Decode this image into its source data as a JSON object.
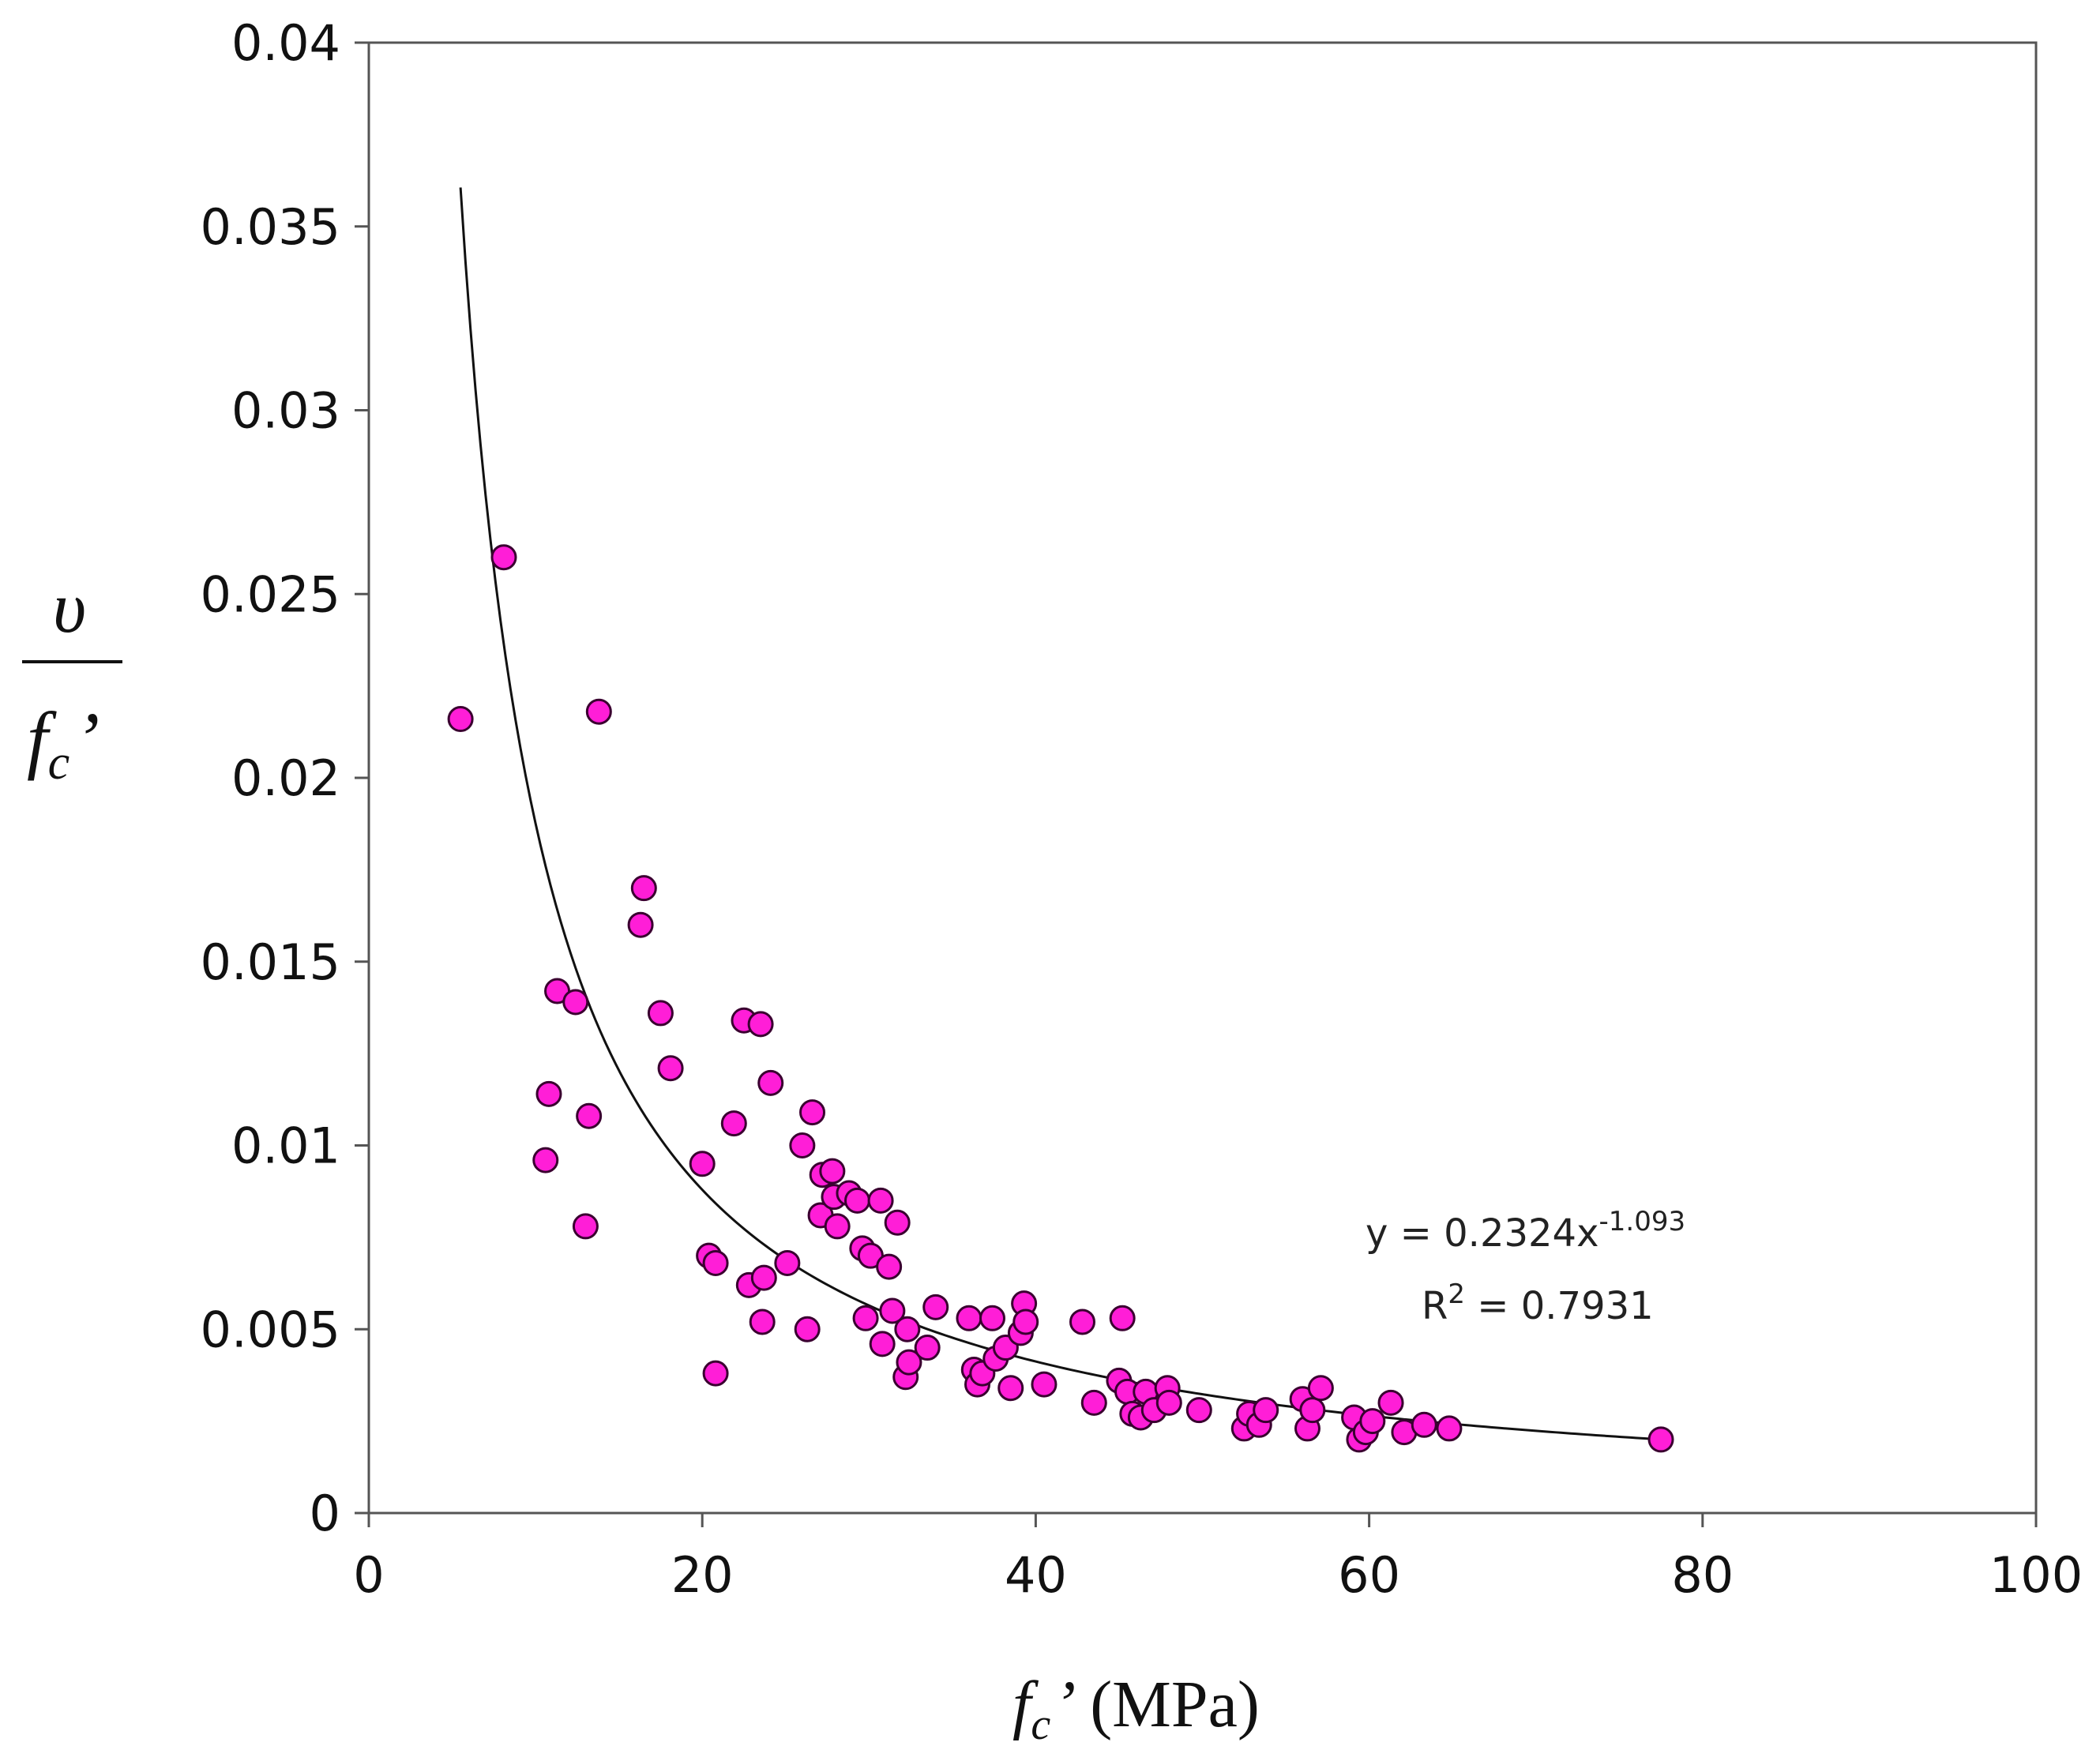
{
  "chart_data": {
    "type": "scatter",
    "title": "",
    "xlabel": {
      "symbol": "f",
      "subscript": "c",
      "prime": "’",
      "unit": "(MPa)"
    },
    "ylabel": {
      "numerator": "υ",
      "denominator_symbol": "f",
      "denominator_subscript": "c",
      "denominator_prime": "’"
    },
    "xlim": [
      0,
      100
    ],
    "ylim": [
      0,
      0.04
    ],
    "x_ticks": [
      0,
      20,
      40,
      60,
      80,
      100
    ],
    "y_ticks": [
      0,
      0.005,
      0.01,
      0.015,
      0.02,
      0.025,
      0.03,
      0.035,
      0.04
    ],
    "x_tick_labels": [
      "0",
      "20",
      "40",
      "60",
      "80",
      "100"
    ],
    "y_tick_labels": [
      "0",
      "0.005",
      "0.01",
      "0.015",
      "0.02",
      "0.025",
      "0.03",
      "0.035",
      "0.04"
    ],
    "grid": false,
    "marker_color": "#ff1ed7",
    "marker_edge_color": "#3a0030",
    "trendline": {
      "type": "power",
      "a": 0.2324,
      "b": -1.093,
      "x_range": [
        5.5,
        77.5
      ],
      "color": "#111111",
      "equation_prefix": "y = 0.2324x",
      "equation_exponent": "-1.093",
      "r2_prefix": "R",
      "r2_exponent": "2",
      "r2_value": " = 0.7931"
    },
    "points": [
      [
        5.5,
        0.0216
      ],
      [
        8.1,
        0.026
      ],
      [
        10.6,
        0.0096
      ],
      [
        10.8,
        0.0114
      ],
      [
        11.3,
        0.0142
      ],
      [
        12.4,
        0.0139
      ],
      [
        13.0,
        0.0078
      ],
      [
        13.2,
        0.0108
      ],
      [
        13.8,
        0.0218
      ],
      [
        16.3,
        0.016
      ],
      [
        16.5,
        0.017
      ],
      [
        17.5,
        0.0136
      ],
      [
        18.1,
        0.0121
      ],
      [
        20.0,
        0.0095
      ],
      [
        20.4,
        0.007
      ],
      [
        20.8,
        0.0068
      ],
      [
        20.8,
        0.0038
      ],
      [
        21.9,
        0.0106
      ],
      [
        22.5,
        0.0134
      ],
      [
        22.8,
        0.0062
      ],
      [
        23.5,
        0.0133
      ],
      [
        23.6,
        0.0052
      ],
      [
        23.7,
        0.0064
      ],
      [
        24.1,
        0.0117
      ],
      [
        25.1,
        0.0068
      ],
      [
        26.0,
        0.01
      ],
      [
        26.3,
        0.005
      ],
      [
        26.6,
        0.0109
      ],
      [
        27.1,
        0.0081
      ],
      [
        27.2,
        0.0092
      ],
      [
        27.8,
        0.0093
      ],
      [
        27.9,
        0.0086
      ],
      [
        28.1,
        0.0078
      ],
      [
        28.8,
        0.0087
      ],
      [
        29.3,
        0.0085
      ],
      [
        29.6,
        0.0072
      ],
      [
        29.8,
        0.0053
      ],
      [
        30.1,
        0.007
      ],
      [
        30.7,
        0.0085
      ],
      [
        30.8,
        0.0046
      ],
      [
        31.2,
        0.0067
      ],
      [
        31.4,
        0.0055
      ],
      [
        31.7,
        0.0079
      ],
      [
        32.2,
        0.0037
      ],
      [
        32.3,
        0.005
      ],
      [
        32.4,
        0.0041
      ],
      [
        33.5,
        0.0045
      ],
      [
        34.0,
        0.0056
      ],
      [
        36.0,
        0.0053
      ],
      [
        36.3,
        0.0039
      ],
      [
        36.5,
        0.0035
      ],
      [
        36.8,
        0.0038
      ],
      [
        37.4,
        0.0053
      ],
      [
        37.6,
        0.0042
      ],
      [
        38.2,
        0.0045
      ],
      [
        38.5,
        0.0034
      ],
      [
        39.1,
        0.0049
      ],
      [
        39.3,
        0.0057
      ],
      [
        39.4,
        0.0052
      ],
      [
        40.5,
        0.0035
      ],
      [
        42.8,
        0.0052
      ],
      [
        43.5,
        0.003
      ],
      [
        45.0,
        0.0036
      ],
      [
        45.2,
        0.0053
      ],
      [
        45.5,
        0.0033
      ],
      [
        45.8,
        0.0027
      ],
      [
        46.3,
        0.0026
      ],
      [
        46.6,
        0.0033
      ],
      [
        47.1,
        0.0028
      ],
      [
        47.9,
        0.0034
      ],
      [
        48.0,
        0.003
      ],
      [
        49.8,
        0.0028
      ],
      [
        52.5,
        0.0023
      ],
      [
        52.8,
        0.0027
      ],
      [
        53.4,
        0.0024
      ],
      [
        53.8,
        0.0028
      ],
      [
        56.0,
        0.0031
      ],
      [
        56.3,
        0.0023
      ],
      [
        56.6,
        0.0028
      ],
      [
        57.1,
        0.0034
      ],
      [
        59.1,
        0.0026
      ],
      [
        59.4,
        0.002
      ],
      [
        59.8,
        0.0022
      ],
      [
        60.2,
        0.0025
      ],
      [
        61.3,
        0.003
      ],
      [
        62.1,
        0.0022
      ],
      [
        63.3,
        0.0024
      ],
      [
        64.8,
        0.0023
      ],
      [
        77.5,
        0.002
      ]
    ]
  }
}
